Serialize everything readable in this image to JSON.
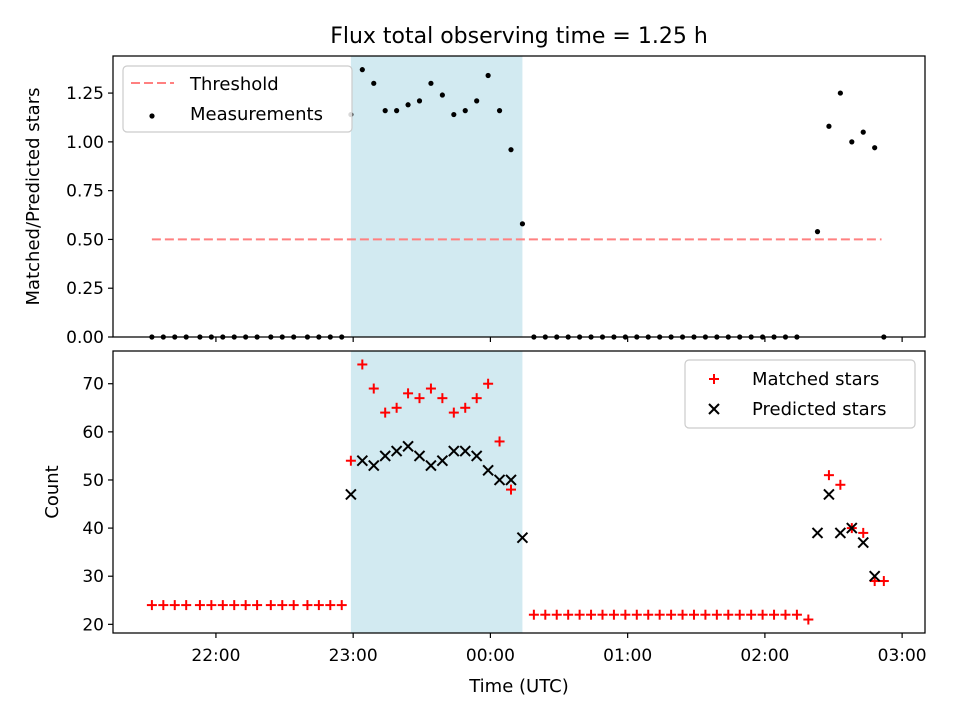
{
  "title": "Flux total observing time = 1.25 h",
  "colors": {
    "threshold": "#ff8080",
    "measurement": "#000000",
    "matched": "#ff0000",
    "predicted": "#000000",
    "shade": "#add8e6"
  },
  "chart_data": [
    {
      "type": "scatter",
      "ylabel": "Matched/Predicted stars",
      "xlabel": "",
      "ylim": [
        0.0,
        1.44
      ],
      "yticks": [
        "0.00",
        "0.25",
        "0.50",
        "0.75",
        "1.00",
        "1.25"
      ],
      "xtick_labels_shown": false,
      "grid": false,
      "legend": {
        "placement": "upper-left",
        "entries": [
          "Threshold",
          "Measurements"
        ]
      },
      "shaded_interval": [
        "22:59",
        "00:14"
      ],
      "threshold": {
        "name": "Threshold",
        "y": 0.5,
        "x_range": [
          "21:32",
          "02:51"
        ],
        "style": "dashed"
      },
      "series": [
        {
          "name": "Measurements",
          "marker": "dot",
          "points": [
            [
              "21:32",
              0
            ],
            [
              "21:37",
              0
            ],
            [
              "21:42",
              0
            ],
            [
              "21:47",
              0
            ],
            [
              "21:53",
              0
            ],
            [
              "21:58",
              0
            ],
            [
              "22:03",
              0
            ],
            [
              "22:08",
              0
            ],
            [
              "22:13",
              0
            ],
            [
              "22:18",
              0
            ],
            [
              "22:24",
              0
            ],
            [
              "22:29",
              0
            ],
            [
              "22:34",
              0
            ],
            [
              "22:40",
              0
            ],
            [
              "22:45",
              0
            ],
            [
              "22:50",
              0
            ],
            [
              "22:55",
              0
            ],
            [
              "22:59",
              1.14
            ],
            [
              "23:04",
              1.37
            ],
            [
              "23:09",
              1.3
            ],
            [
              "23:14",
              1.16
            ],
            [
              "23:19",
              1.16
            ],
            [
              "23:24",
              1.19
            ],
            [
              "23:29",
              1.21
            ],
            [
              "23:34",
              1.3
            ],
            [
              "23:39",
              1.24
            ],
            [
              "23:44",
              1.14
            ],
            [
              "23:49",
              1.16
            ],
            [
              "23:54",
              1.21
            ],
            [
              "23:59",
              1.34
            ],
            [
              "00:04",
              1.16
            ],
            [
              "00:09",
              0.96
            ],
            [
              "00:14",
              0.58
            ],
            [
              "00:19",
              0
            ],
            [
              "00:24",
              0
            ],
            [
              "00:29",
              0
            ],
            [
              "00:34",
              0
            ],
            [
              "00:39",
              0
            ],
            [
              "00:44",
              0
            ],
            [
              "00:49",
              0
            ],
            [
              "00:54",
              0
            ],
            [
              "00:59",
              0
            ],
            [
              "01:04",
              0
            ],
            [
              "01:09",
              0
            ],
            [
              "01:14",
              0
            ],
            [
              "01:19",
              0
            ],
            [
              "01:24",
              0
            ],
            [
              "01:29",
              0
            ],
            [
              "01:34",
              0
            ],
            [
              "01:39",
              0
            ],
            [
              "01:44",
              0
            ],
            [
              "01:49",
              0
            ],
            [
              "01:54",
              0
            ],
            [
              "01:59",
              0
            ],
            [
              "02:04",
              0
            ],
            [
              "02:09",
              0
            ],
            [
              "02:14",
              0
            ],
            [
              "02:23",
              0.54
            ],
            [
              "02:28",
              1.08
            ],
            [
              "02:33",
              1.25
            ],
            [
              "02:38",
              1.0
            ],
            [
              "02:43",
              1.05
            ],
            [
              "02:48",
              0.97
            ],
            [
              "02:52",
              0
            ]
          ]
        }
      ]
    },
    {
      "type": "scatter",
      "ylabel": "Count",
      "xlabel": "Time (UTC)",
      "ylim": [
        18.2,
        76.8
      ],
      "yticks": [
        "20",
        "30",
        "40",
        "50",
        "60",
        "70"
      ],
      "xticks": [
        "22:00",
        "23:00",
        "00:00",
        "01:00",
        "02:00",
        "03:00"
      ],
      "grid": false,
      "legend": {
        "placement": "upper-right",
        "entries": [
          "Matched stars",
          "Predicted stars"
        ]
      },
      "shaded_interval": [
        "22:59",
        "00:14"
      ],
      "series": [
        {
          "name": "Matched stars",
          "marker": "plus",
          "points": [
            [
              "21:32",
              24
            ],
            [
              "21:37",
              24
            ],
            [
              "21:42",
              24
            ],
            [
              "21:47",
              24
            ],
            [
              "21:53",
              24
            ],
            [
              "21:58",
              24
            ],
            [
              "22:03",
              24
            ],
            [
              "22:08",
              24
            ],
            [
              "22:13",
              24
            ],
            [
              "22:18",
              24
            ],
            [
              "22:24",
              24
            ],
            [
              "22:29",
              24
            ],
            [
              "22:34",
              24
            ],
            [
              "22:40",
              24
            ],
            [
              "22:45",
              24
            ],
            [
              "22:50",
              24
            ],
            [
              "22:55",
              24
            ],
            [
              "22:59",
              54
            ],
            [
              "23:04",
              74
            ],
            [
              "23:09",
              69
            ],
            [
              "23:14",
              64
            ],
            [
              "23:19",
              65
            ],
            [
              "23:24",
              68
            ],
            [
              "23:29",
              67
            ],
            [
              "23:34",
              69
            ],
            [
              "23:39",
              67
            ],
            [
              "23:44",
              64
            ],
            [
              "23:49",
              65
            ],
            [
              "23:54",
              67
            ],
            [
              "23:59",
              70
            ],
            [
              "00:04",
              58
            ],
            [
              "00:09",
              48
            ],
            [
              "00:19",
              22
            ],
            [
              "00:24",
              22
            ],
            [
              "00:29",
              22
            ],
            [
              "00:34",
              22
            ],
            [
              "00:39",
              22
            ],
            [
              "00:44",
              22
            ],
            [
              "00:49",
              22
            ],
            [
              "00:54",
              22
            ],
            [
              "00:59",
              22
            ],
            [
              "01:04",
              22
            ],
            [
              "01:09",
              22
            ],
            [
              "01:14",
              22
            ],
            [
              "01:19",
              22
            ],
            [
              "01:24",
              22
            ],
            [
              "01:29",
              22
            ],
            [
              "01:34",
              22
            ],
            [
              "01:39",
              22
            ],
            [
              "01:44",
              22
            ],
            [
              "01:49",
              22
            ],
            [
              "01:54",
              22
            ],
            [
              "01:59",
              22
            ],
            [
              "02:04",
              22
            ],
            [
              "02:09",
              22
            ],
            [
              "02:14",
              22
            ],
            [
              "02:19",
              21
            ],
            [
              "02:28",
              51
            ],
            [
              "02:33",
              49
            ],
            [
              "02:38",
              40
            ],
            [
              "02:43",
              39
            ],
            [
              "02:48",
              29
            ],
            [
              "02:52",
              29
            ]
          ]
        },
        {
          "name": "Predicted stars",
          "marker": "x",
          "points": [
            [
              "22:59",
              47
            ],
            [
              "23:04",
              54
            ],
            [
              "23:09",
              53
            ],
            [
              "23:14",
              55
            ],
            [
              "23:19",
              56
            ],
            [
              "23:24",
              57
            ],
            [
              "23:29",
              55
            ],
            [
              "23:34",
              53
            ],
            [
              "23:39",
              54
            ],
            [
              "23:44",
              56
            ],
            [
              "23:49",
              56
            ],
            [
              "23:54",
              55
            ],
            [
              "23:59",
              52
            ],
            [
              "00:04",
              50
            ],
            [
              "00:09",
              50
            ],
            [
              "00:14",
              38
            ],
            [
              "02:23",
              39
            ],
            [
              "02:28",
              47
            ],
            [
              "02:33",
              39
            ],
            [
              "02:38",
              40
            ],
            [
              "02:43",
              37
            ],
            [
              "02:48",
              30
            ]
          ]
        }
      ]
    }
  ]
}
